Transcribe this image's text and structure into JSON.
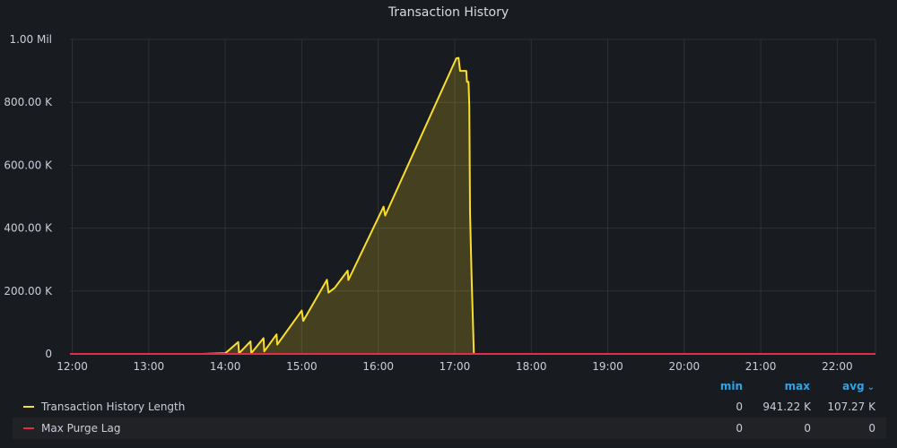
{
  "panel": {
    "title": "Transaction History"
  },
  "chart_data": {
    "type": "area",
    "title": "Transaction History",
    "xlabel": "",
    "ylabel": "",
    "x_ticks": [
      "12:00",
      "13:00",
      "14:00",
      "15:00",
      "16:00",
      "17:00",
      "18:00",
      "19:00",
      "20:00",
      "21:00",
      "22:00"
    ],
    "y_ticks": [
      "0",
      "200.00 K",
      "400.00 K",
      "600.00 K",
      "800.00 K",
      "1.00 Mil"
    ],
    "ylim": [
      0,
      1000000
    ],
    "xlim_hours": [
      11.97,
      22.5
    ],
    "grid": true,
    "legend_position": "bottom",
    "series": [
      {
        "name": "Transaction History Length",
        "color": "#fade2a",
        "fill": true,
        "points": [
          [
            11.97,
            0
          ],
          [
            13.7,
            0
          ],
          [
            14.0,
            2000
          ],
          [
            14.17,
            38000
          ],
          [
            14.18,
            2000
          ],
          [
            14.33,
            40000
          ],
          [
            14.34,
            2000
          ],
          [
            14.5,
            50000
          ],
          [
            14.51,
            8000
          ],
          [
            14.67,
            62000
          ],
          [
            14.68,
            30000
          ],
          [
            15.0,
            138000
          ],
          [
            15.02,
            105000
          ],
          [
            15.33,
            236000
          ],
          [
            15.35,
            195000
          ],
          [
            15.43,
            210000
          ],
          [
            15.6,
            265000
          ],
          [
            15.61,
            235000
          ],
          [
            16.07,
            468000
          ],
          [
            16.09,
            440000
          ],
          [
            17.02,
            940000
          ],
          [
            17.05,
            941220
          ],
          [
            17.07,
            900000
          ],
          [
            17.15,
            900000
          ],
          [
            17.16,
            865000
          ],
          [
            17.18,
            865000
          ],
          [
            17.19,
            790000
          ],
          [
            17.2,
            450000
          ],
          [
            17.22,
            250000
          ],
          [
            17.25,
            0
          ],
          [
            22.5,
            0
          ]
        ]
      },
      {
        "name": "Max Purge Lag",
        "color": "#e02f44",
        "fill": false,
        "points": [
          [
            11.97,
            0
          ],
          [
            22.5,
            0
          ]
        ]
      }
    ]
  },
  "legend": {
    "headers": {
      "min": "min",
      "max": "max",
      "avg": "avg"
    },
    "rows": [
      {
        "name": "Transaction History Length",
        "color": "#fade2a",
        "min": "0",
        "max": "941.22 K",
        "avg": "107.27 K"
      },
      {
        "name": "Max Purge Lag",
        "color": "#e02f44",
        "min": "0",
        "max": "0",
        "avg": "0"
      }
    ]
  }
}
